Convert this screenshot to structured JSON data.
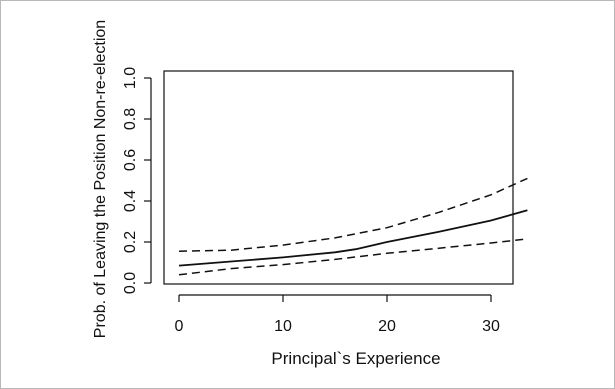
{
  "chart_data": {
    "type": "line",
    "xlabel": "Principal`s Experience",
    "ylabel": "Prob. of Leaving the Position Non-re-election",
    "xlim": [
      0,
      34
    ],
    "ylim": [
      0,
      1.0
    ],
    "x_ticks": [
      "0",
      "10",
      "20",
      "30"
    ],
    "y_ticks": [
      "0.0",
      "0.2",
      "0.4",
      "0.6",
      "0.8",
      "1.0"
    ],
    "grid": false,
    "series": [
      {
        "role": "estimate",
        "line_style": "solid",
        "x": [
          0,
          5,
          10,
          15,
          17,
          20,
          25,
          30,
          33.5
        ],
        "y": [
          0.085,
          0.105,
          0.125,
          0.15,
          0.165,
          0.2,
          0.25,
          0.305,
          0.355
        ]
      },
      {
        "role": "upper-bound",
        "line_style": "dashed",
        "x": [
          0,
          5,
          10,
          15,
          20,
          25,
          30,
          33.5
        ],
        "y": [
          0.155,
          0.16,
          0.185,
          0.22,
          0.27,
          0.345,
          0.43,
          0.51
        ]
      },
      {
        "role": "lower-bound",
        "line_style": "dashed",
        "x": [
          0,
          5,
          10,
          15,
          20,
          25,
          30,
          33.5
        ],
        "y": [
          0.04,
          0.07,
          0.09,
          0.115,
          0.145,
          0.17,
          0.195,
          0.215
        ]
      }
    ]
  }
}
